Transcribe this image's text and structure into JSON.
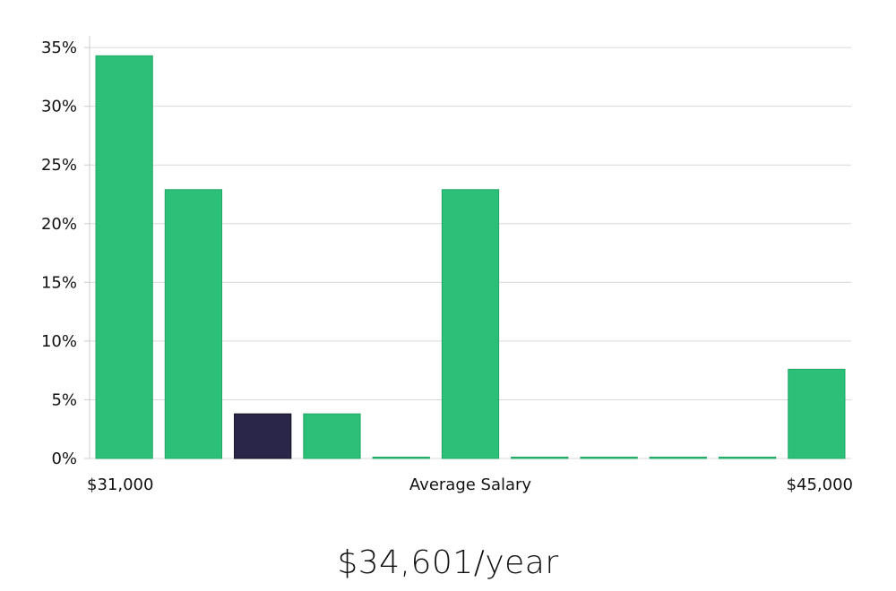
{
  "chart_data": {
    "type": "bar",
    "title": "",
    "xlabel": "Average Salary",
    "ylabel": "",
    "x_start_label": "$31,000",
    "x_end_label": "$45,000",
    "categories": [
      "1",
      "2",
      "3",
      "4",
      "5",
      "6",
      "7",
      "8",
      "9",
      "10",
      "11"
    ],
    "values": [
      34.3,
      22.9,
      3.8,
      3.8,
      0,
      22.9,
      0,
      0,
      0,
      0,
      7.6
    ],
    "highlight_index": 2,
    "ylim": [
      0,
      36
    ],
    "yticks": [
      0,
      5,
      10,
      15,
      20,
      25,
      30,
      35
    ],
    "ytick_labels": [
      "0%",
      "5%",
      "10%",
      "15%",
      "20%",
      "25%",
      "30%",
      "35%"
    ],
    "grid": true,
    "colors": {
      "bar": "#2bbf77",
      "bar_stroke": "#22a866",
      "highlight": "#29264a",
      "highlight_stroke": "#111122",
      "grid": "#d9d9d9",
      "axis": "#cccccc"
    }
  },
  "summary": {
    "salary_text": "$34,601/year"
  }
}
